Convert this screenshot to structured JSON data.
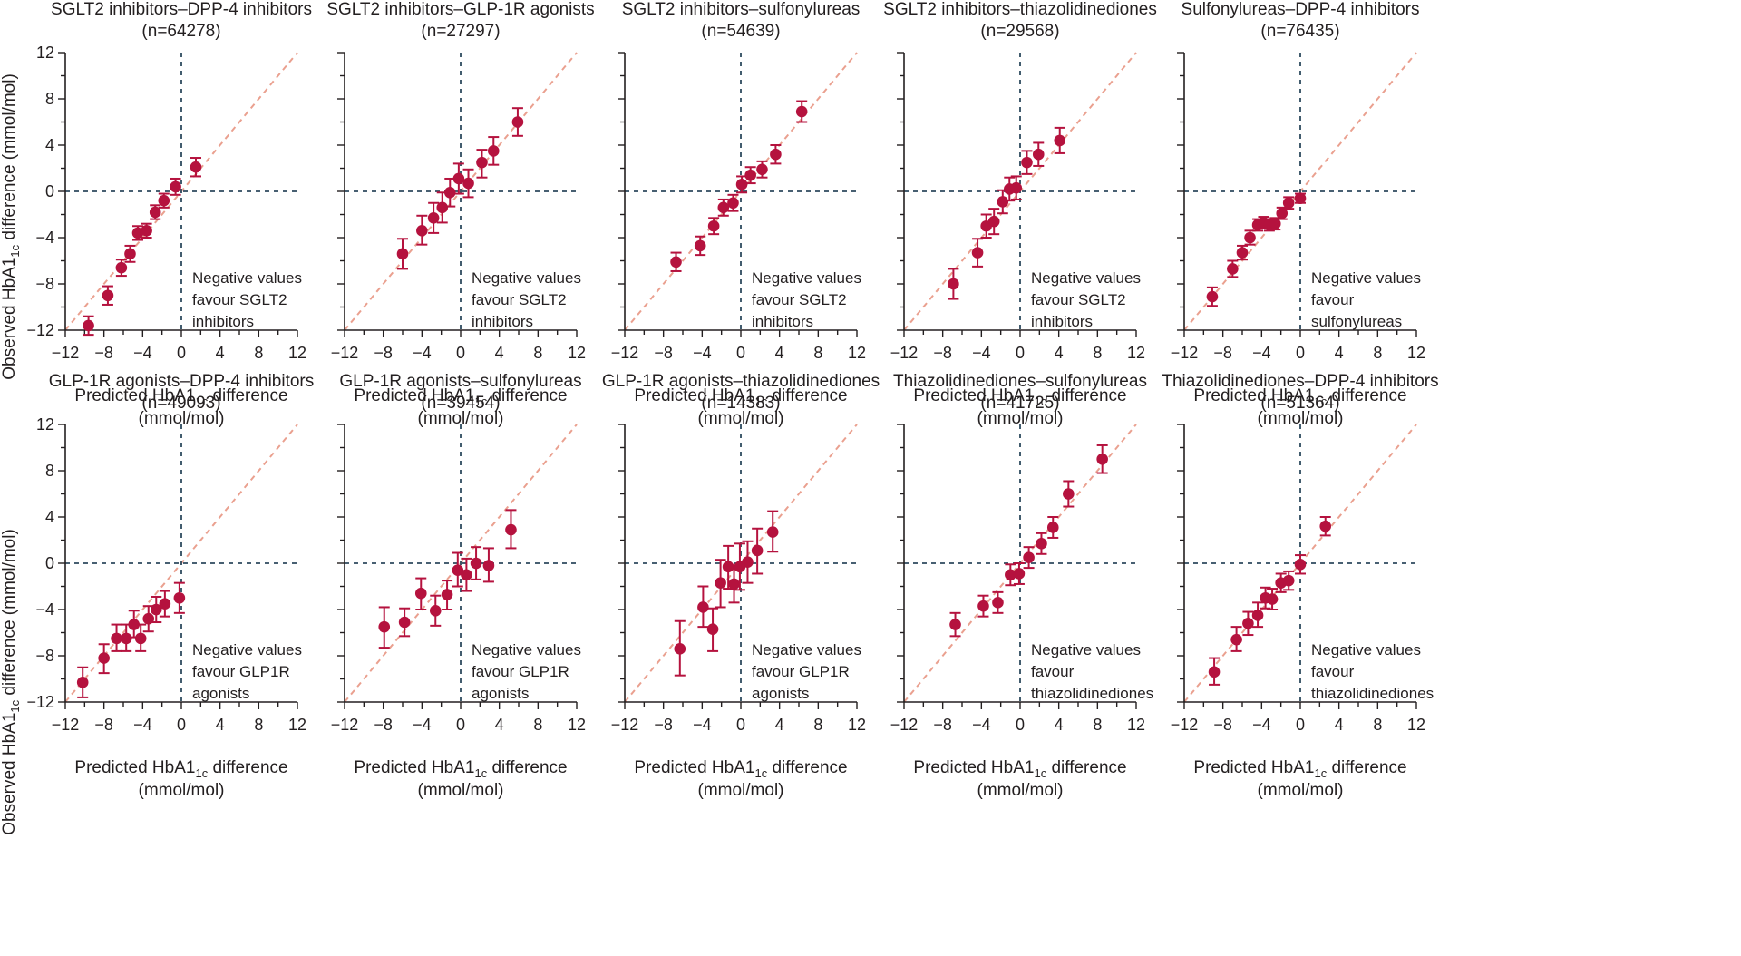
{
  "figure": {
    "y_axis_label": "Observed HbA1c difference (mmol/mol)",
    "x_axis_label_line1": "Predicted HbA1c difference",
    "x_axis_label_line2": "(mmol/mol)",
    "colors": {
      "point": "#b5123e",
      "identity": "#eaa08f",
      "reference": "#2e4a5e",
      "axis": "#231f20",
      "text": "#231f20"
    }
  },
  "chart_data": [
    {
      "type": "scatter",
      "title": "SGLT2 inhibitors–DPP-4 inhibitors",
      "subtitle": "(n=64278)",
      "xlim": [
        -12,
        12
      ],
      "ylim": [
        -12,
        12
      ],
      "xticks": [
        -12,
        -8,
        -4,
        0,
        4,
        8,
        12
      ],
      "yticks": [
        -12,
        -8,
        -4,
        0,
        4,
        8,
        12
      ],
      "annotation": [
        "Negative values",
        "favour SGLT2",
        "inhibitors"
      ],
      "points": [
        {
          "x": -9.6,
          "y": -11.6,
          "lo": -12.4,
          "hi": -10.8
        },
        {
          "x": -7.6,
          "y": -9.0,
          "lo": -9.8,
          "hi": -8.2
        },
        {
          "x": -6.2,
          "y": -6.6,
          "lo": -7.3,
          "hi": -5.9
        },
        {
          "x": -5.3,
          "y": -5.4,
          "lo": -6.1,
          "hi": -4.7
        },
        {
          "x": -4.5,
          "y": -3.6,
          "lo": -4.2,
          "hi": -3.0
        },
        {
          "x": -3.6,
          "y": -3.4,
          "lo": -4.0,
          "hi": -2.8
        },
        {
          "x": -2.7,
          "y": -1.8,
          "lo": -2.4,
          "hi": -1.2
        },
        {
          "x": -1.8,
          "y": -0.8,
          "lo": -1.4,
          "hi": -0.2
        },
        {
          "x": -0.6,
          "y": 0.4,
          "lo": -0.3,
          "hi": 1.1
        },
        {
          "x": 1.5,
          "y": 2.1,
          "lo": 1.3,
          "hi": 2.9
        }
      ]
    },
    {
      "type": "scatter",
      "title": "SGLT2 inhibitors–GLP-1R agonists",
      "subtitle": "(n=27297)",
      "xlim": [
        -12,
        12
      ],
      "ylim": [
        -12,
        12
      ],
      "xticks": [
        -12,
        -8,
        -4,
        0,
        4,
        8,
        12
      ],
      "yticks": [
        -12,
        -8,
        -4,
        0,
        4,
        8,
        12
      ],
      "annotation": [
        "Negative values",
        "favour SGLT2",
        "inhibitors"
      ],
      "points": [
        {
          "x": -6.0,
          "y": -5.4,
          "lo": -6.7,
          "hi": -4.1
        },
        {
          "x": -4.0,
          "y": -3.4,
          "lo": -4.6,
          "hi": -2.1
        },
        {
          "x": -2.8,
          "y": -2.3,
          "lo": -3.6,
          "hi": -1.0
        },
        {
          "x": -1.9,
          "y": -1.4,
          "lo": -2.7,
          "hi": -0.1
        },
        {
          "x": -1.1,
          "y": -0.1,
          "lo": -1.3,
          "hi": 1.1
        },
        {
          "x": -0.2,
          "y": 1.1,
          "lo": -0.2,
          "hi": 2.4
        },
        {
          "x": 0.8,
          "y": 0.7,
          "lo": -0.5,
          "hi": 1.9
        },
        {
          "x": 2.2,
          "y": 2.5,
          "lo": 1.2,
          "hi": 3.6
        },
        {
          "x": 3.4,
          "y": 3.5,
          "lo": 2.3,
          "hi": 4.7
        },
        {
          "x": 5.9,
          "y": 6.0,
          "lo": 4.8,
          "hi": 7.2
        }
      ]
    },
    {
      "type": "scatter",
      "title": "SGLT2 inhibitors–sulfonylureas",
      "subtitle": "(n=54639)",
      "xlim": [
        -12,
        12
      ],
      "ylim": [
        -12,
        12
      ],
      "xticks": [
        -12,
        -8,
        -4,
        0,
        4,
        8,
        12
      ],
      "yticks": [
        -12,
        -8,
        -4,
        0,
        4,
        8,
        12
      ],
      "annotation": [
        "Negative values",
        "favour SGLT2",
        "inhibitors"
      ],
      "points": [
        {
          "x": -6.7,
          "y": -6.1,
          "lo": -6.9,
          "hi": -5.3
        },
        {
          "x": -4.2,
          "y": -4.7,
          "lo": -5.5,
          "hi": -3.9
        },
        {
          "x": -2.8,
          "y": -3.0,
          "lo": -3.7,
          "hi": -2.3
        },
        {
          "x": -1.8,
          "y": -1.4,
          "lo": -2.1,
          "hi": -0.7
        },
        {
          "x": -0.8,
          "y": -1.0,
          "lo": -1.7,
          "hi": -0.3
        },
        {
          "x": 0.1,
          "y": 0.6,
          "lo": -0.1,
          "hi": 1.3
        },
        {
          "x": 1.0,
          "y": 1.4,
          "lo": 0.7,
          "hi": 2.1
        },
        {
          "x": 2.2,
          "y": 1.9,
          "lo": 1.2,
          "hi": 2.6
        },
        {
          "x": 3.6,
          "y": 3.2,
          "lo": 2.4,
          "hi": 4.0
        },
        {
          "x": 6.3,
          "y": 6.9,
          "lo": 6.0,
          "hi": 7.8
        }
      ]
    },
    {
      "type": "scatter",
      "title": "SGLT2 inhibitors–thiazolidinediones",
      "subtitle": "(n=29568)",
      "xlim": [
        -12,
        12
      ],
      "ylim": [
        -12,
        12
      ],
      "xticks": [
        -12,
        -8,
        -4,
        0,
        4,
        8,
        12
      ],
      "yticks": [
        -12,
        -8,
        -4,
        0,
        4,
        8,
        12
      ],
      "annotation": [
        "Negative values",
        "favour SGLT2",
        "inhibitors"
      ],
      "points": [
        {
          "x": -6.9,
          "y": -8.0,
          "lo": -9.3,
          "hi": -6.7
        },
        {
          "x": -4.4,
          "y": -5.3,
          "lo": -6.5,
          "hi": -4.1
        },
        {
          "x": -3.5,
          "y": -3.0,
          "lo": -4.0,
          "hi": -2.0
        },
        {
          "x": -2.7,
          "y": -2.6,
          "lo": -3.7,
          "hi": -1.5
        },
        {
          "x": -1.8,
          "y": -0.9,
          "lo": -1.9,
          "hi": 0.1
        },
        {
          "x": -1.1,
          "y": 0.2,
          "lo": -0.8,
          "hi": 1.2
        },
        {
          "x": -0.4,
          "y": 0.3,
          "lo": -0.7,
          "hi": 1.3
        },
        {
          "x": 0.7,
          "y": 2.5,
          "lo": 1.5,
          "hi": 3.5
        },
        {
          "x": 1.9,
          "y": 3.2,
          "lo": 2.2,
          "hi": 4.2
        },
        {
          "x": 4.1,
          "y": 4.4,
          "lo": 3.3,
          "hi": 5.5
        }
      ]
    },
    {
      "type": "scatter",
      "title": "Sulfonylureas–DPP-4 inhibitors",
      "subtitle": "(n=76435)",
      "xlim": [
        -12,
        12
      ],
      "ylim": [
        -12,
        12
      ],
      "xticks": [
        -12,
        -8,
        -4,
        0,
        4,
        8,
        12
      ],
      "yticks": [
        -12,
        -8,
        -4,
        0,
        4,
        8,
        12
      ],
      "annotation": [
        "Negative values",
        "favour",
        "sulfonylureas"
      ],
      "points": [
        {
          "x": -9.1,
          "y": -9.1,
          "lo": -9.9,
          "hi": -8.3
        },
        {
          "x": -7.0,
          "y": -6.7,
          "lo": -7.4,
          "hi": -6.0
        },
        {
          "x": -6.0,
          "y": -5.3,
          "lo": -5.9,
          "hi": -4.7
        },
        {
          "x": -5.2,
          "y": -4.0,
          "lo": -4.6,
          "hi": -3.4
        },
        {
          "x": -4.4,
          "y": -2.9,
          "lo": -3.4,
          "hi": -2.4
        },
        {
          "x": -3.8,
          "y": -2.7,
          "lo": -3.2,
          "hi": -2.2
        },
        {
          "x": -3.2,
          "y": -2.9,
          "lo": -3.4,
          "hi": -2.4
        },
        {
          "x": -2.6,
          "y": -2.8,
          "lo": -3.3,
          "hi": -2.3
        },
        {
          "x": -1.9,
          "y": -1.9,
          "lo": -2.4,
          "hi": -1.4
        },
        {
          "x": -1.2,
          "y": -1.0,
          "lo": -1.5,
          "hi": -0.5
        },
        {
          "x": 0.0,
          "y": -0.6,
          "lo": -1.0,
          "hi": -0.2
        }
      ]
    },
    {
      "type": "scatter",
      "title": "GLP-1R agonists–DPP-4 inhibitors",
      "subtitle": "(n=49093)",
      "xlim": [
        -12,
        12
      ],
      "ylim": [
        -12,
        12
      ],
      "xticks": [
        -12,
        -8,
        -4,
        0,
        4,
        8,
        12
      ],
      "yticks": [
        -12,
        -8,
        -4,
        0,
        4,
        8,
        12
      ],
      "annotation": [
        "Negative values",
        "favour GLP1R",
        "agonists"
      ],
      "points": [
        {
          "x": -10.2,
          "y": -10.3,
          "lo": -11.6,
          "hi": -9.0
        },
        {
          "x": -8.0,
          "y": -8.2,
          "lo": -9.5,
          "hi": -7.0
        },
        {
          "x": -6.7,
          "y": -6.5,
          "lo": -7.6,
          "hi": -5.3
        },
        {
          "x": -5.7,
          "y": -6.5,
          "lo": -7.6,
          "hi": -5.3
        },
        {
          "x": -4.9,
          "y": -5.3,
          "lo": -6.4,
          "hi": -4.1
        },
        {
          "x": -4.2,
          "y": -6.5,
          "lo": -7.6,
          "hi": -5.3
        },
        {
          "x": -3.4,
          "y": -4.8,
          "lo": -5.9,
          "hi": -3.7
        },
        {
          "x": -2.6,
          "y": -4.0,
          "lo": -5.1,
          "hi": -2.9
        },
        {
          "x": -1.7,
          "y": -3.5,
          "lo": -4.6,
          "hi": -2.4
        },
        {
          "x": -0.2,
          "y": -3.0,
          "lo": -4.3,
          "hi": -1.7
        }
      ]
    },
    {
      "type": "scatter",
      "title": "GLP-1R agonists–sulfonylureas",
      "subtitle": "(n=39454)",
      "xlim": [
        -12,
        12
      ],
      "ylim": [
        -12,
        12
      ],
      "xticks": [
        -12,
        -8,
        -4,
        0,
        4,
        8,
        12
      ],
      "yticks": [
        -12,
        -8,
        -4,
        0,
        4,
        8,
        12
      ],
      "annotation": [
        "Negative values",
        "favour GLP1R",
        "agonists"
      ],
      "points": [
        {
          "x": -7.9,
          "y": -5.5,
          "lo": -7.3,
          "hi": -3.8
        },
        {
          "x": -5.8,
          "y": -5.1,
          "lo": -6.3,
          "hi": -3.9
        },
        {
          "x": -4.1,
          "y": -2.6,
          "lo": -4.0,
          "hi": -1.3
        },
        {
          "x": -2.6,
          "y": -4.1,
          "lo": -5.4,
          "hi": -2.8
        },
        {
          "x": -1.4,
          "y": -2.7,
          "lo": -4.0,
          "hi": -1.5
        },
        {
          "x": -0.3,
          "y": -0.6,
          "lo": -2.0,
          "hi": 0.9
        },
        {
          "x": 0.6,
          "y": -1.0,
          "lo": -2.4,
          "hi": 0.4
        },
        {
          "x": 1.6,
          "y": 0.0,
          "lo": -1.4,
          "hi": 1.4
        },
        {
          "x": 2.9,
          "y": -0.2,
          "lo": -1.6,
          "hi": 1.3
        },
        {
          "x": 5.2,
          "y": 2.9,
          "lo": 1.3,
          "hi": 4.6
        }
      ]
    },
    {
      "type": "scatter",
      "title": "GLP-1R agonists–thiazolidinediones",
      "subtitle": "(n=14383)",
      "xlim": [
        -12,
        12
      ],
      "ylim": [
        -12,
        12
      ],
      "xticks": [
        -12,
        -8,
        -4,
        0,
        4,
        8,
        12
      ],
      "yticks": [
        -12,
        -8,
        -4,
        0,
        4,
        8,
        12
      ],
      "annotation": [
        "Negative values",
        "favour GLP1R",
        "agonists"
      ],
      "points": [
        {
          "x": -6.3,
          "y": -7.4,
          "lo": -9.7,
          "hi": -5.0
        },
        {
          "x": -3.9,
          "y": -3.8,
          "lo": -5.5,
          "hi": -2.0
        },
        {
          "x": -2.9,
          "y": -5.7,
          "lo": -7.6,
          "hi": -3.9
        },
        {
          "x": -2.1,
          "y": -1.7,
          "lo": -3.8,
          "hi": 0.3
        },
        {
          "x": -1.3,
          "y": -0.3,
          "lo": -2.2,
          "hi": 1.5
        },
        {
          "x": -0.7,
          "y": -1.8,
          "lo": -3.4,
          "hi": -0.2
        },
        {
          "x": -0.1,
          "y": -0.3,
          "lo": -2.3,
          "hi": 1.7
        },
        {
          "x": 0.7,
          "y": 0.1,
          "lo": -1.7,
          "hi": 1.9
        },
        {
          "x": 1.7,
          "y": 1.1,
          "lo": -0.9,
          "hi": 3.0
        },
        {
          "x": 3.3,
          "y": 2.7,
          "lo": 1.0,
          "hi": 4.5
        }
      ]
    },
    {
      "type": "scatter",
      "title": "Thiazolidinediones–sulfonylureas",
      "subtitle": "(n=41725)",
      "xlim": [
        -12,
        12
      ],
      "ylim": [
        -12,
        12
      ],
      "xticks": [
        -12,
        -8,
        -4,
        0,
        4,
        8,
        12
      ],
      "yticks": [
        -12,
        -8,
        -4,
        0,
        4,
        8,
        12
      ],
      "annotation": [
        "Negative values",
        "favour",
        "thiazolidinediones"
      ],
      "points": [
        {
          "x": -6.7,
          "y": -5.3,
          "lo": -6.3,
          "hi": -4.3
        },
        {
          "x": -3.8,
          "y": -3.7,
          "lo": -4.6,
          "hi": -2.8
        },
        {
          "x": -2.3,
          "y": -3.4,
          "lo": -4.3,
          "hi": -2.5
        },
        {
          "x": -1.0,
          "y": -1.0,
          "lo": -1.9,
          "hi": -0.1
        },
        {
          "x": -0.1,
          "y": -0.9,
          "lo": -1.8,
          "hi": 0.0
        },
        {
          "x": 0.9,
          "y": 0.5,
          "lo": -0.4,
          "hi": 1.4
        },
        {
          "x": 2.2,
          "y": 1.7,
          "lo": 0.8,
          "hi": 2.6
        },
        {
          "x": 3.4,
          "y": 3.1,
          "lo": 2.2,
          "hi": 4.0
        },
        {
          "x": 5.0,
          "y": 6.0,
          "lo": 4.9,
          "hi": 7.1
        },
        {
          "x": 8.5,
          "y": 9.0,
          "lo": 7.8,
          "hi": 10.2
        }
      ]
    },
    {
      "type": "scatter",
      "title": "Thiazolidinediones–DPP-4 inhibitors",
      "subtitle": "(n=51364)",
      "xlim": [
        -12,
        12
      ],
      "ylim": [
        -12,
        12
      ],
      "xticks": [
        -12,
        -8,
        -4,
        0,
        4,
        8,
        12
      ],
      "yticks": [
        -12,
        -8,
        -4,
        0,
        4,
        8,
        12
      ],
      "annotation": [
        "Negative values",
        "favour",
        "thiazolidinediones"
      ],
      "points": [
        {
          "x": -8.9,
          "y": -9.4,
          "lo": -10.5,
          "hi": -8.2
        },
        {
          "x": -6.6,
          "y": -6.6,
          "lo": -7.6,
          "hi": -5.5
        },
        {
          "x": -5.4,
          "y": -5.2,
          "lo": -6.2,
          "hi": -4.2
        },
        {
          "x": -4.4,
          "y": -4.5,
          "lo": -5.5,
          "hi": -3.4
        },
        {
          "x": -3.6,
          "y": -3.0,
          "lo": -3.9,
          "hi": -2.1
        },
        {
          "x": -2.9,
          "y": -3.1,
          "lo": -4.0,
          "hi": -2.2
        },
        {
          "x": -2.0,
          "y": -1.7,
          "lo": -2.5,
          "hi": -0.9
        },
        {
          "x": -1.2,
          "y": -1.5,
          "lo": -2.3,
          "hi": -0.7
        },
        {
          "x": 0.0,
          "y": -0.1,
          "lo": -0.9,
          "hi": 0.7
        },
        {
          "x": 2.6,
          "y": 3.2,
          "lo": 2.4,
          "hi": 4.0
        }
      ]
    }
  ]
}
